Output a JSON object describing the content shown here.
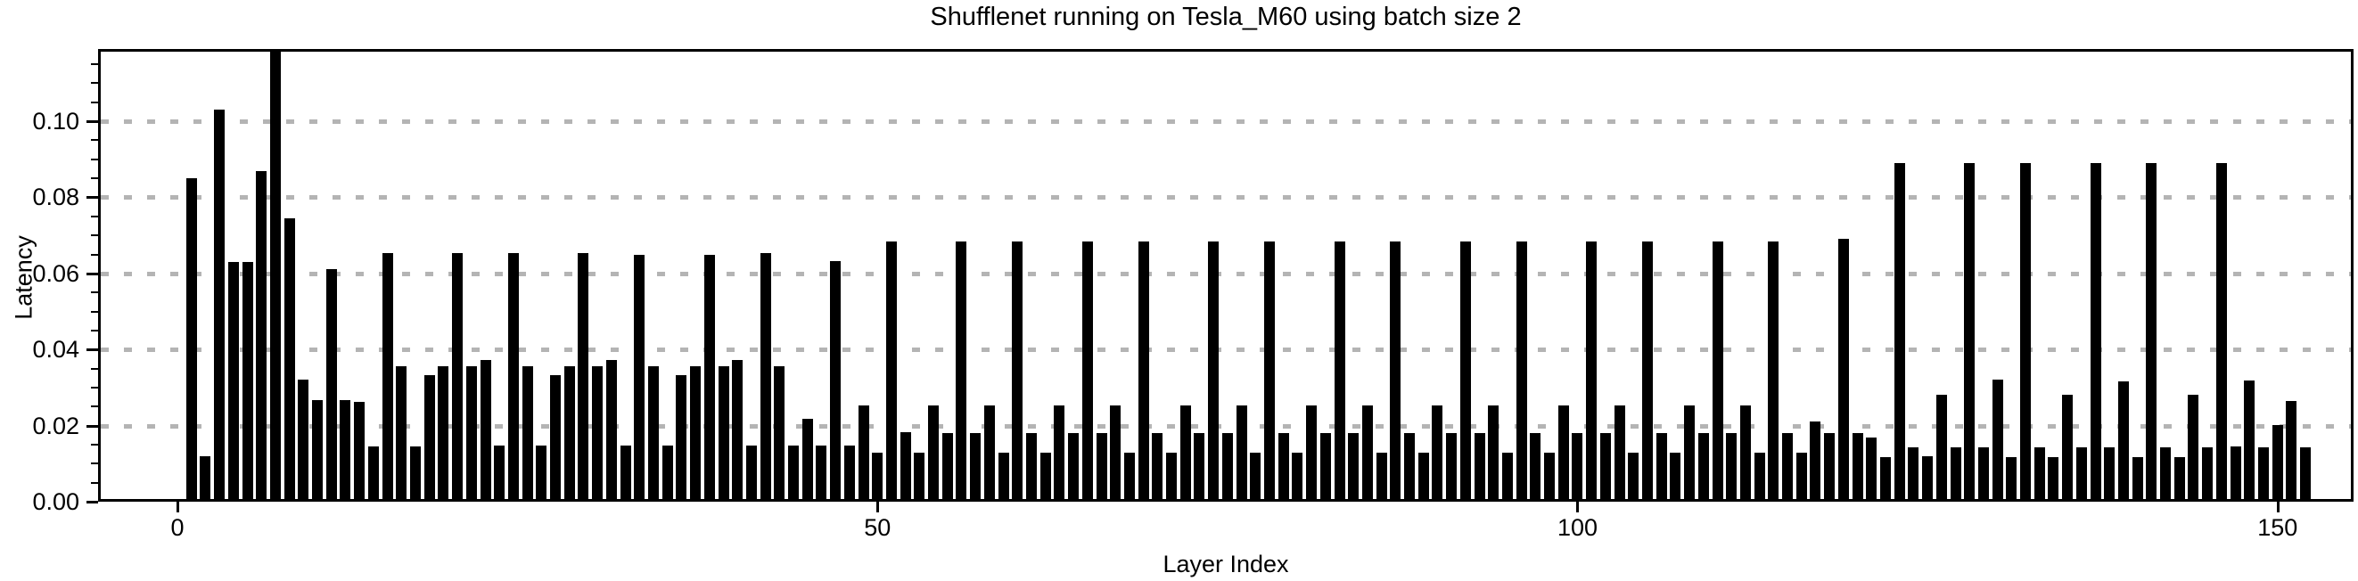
{
  "chart_data": {
    "type": "bar",
    "title": "Shufflenet running on Tesla_M60 using batch size 2",
    "xlabel": "Layer Index",
    "ylabel": "Latency",
    "bar_color": "#000000",
    "grid_color": "#b4b4b4",
    "grid_style": "dashed-y",
    "legend": "none",
    "x_start_index": 1,
    "xlim": [
      -5.67,
      155.43
    ],
    "ylim": [
      0,
      0.119
    ],
    "xticks": [
      0,
      50,
      100,
      150
    ],
    "xtick_labels": [
      "0",
      "50",
      "100",
      "150"
    ],
    "yticks": [
      0.0,
      0.02,
      0.04,
      0.06,
      0.08,
      0.1
    ],
    "ytick_labels": [
      "0.00",
      "0.02",
      "0.04",
      "0.06",
      "0.08",
      "0.10"
    ],
    "y_minor_step": 0.005,
    "values": [
      0.085,
      0.012,
      0.103,
      0.063,
      0.063,
      0.087,
      0.119,
      0.0746,
      0.0322,
      0.0268,
      0.0611,
      0.0268,
      0.0263,
      0.0146,
      0.0653,
      0.0355,
      0.0146,
      0.0332,
      0.0357,
      0.0653,
      0.0357,
      0.0373,
      0.0148,
      0.0653,
      0.0355,
      0.0148,
      0.0332,
      0.0357,
      0.0653,
      0.0356,
      0.0373,
      0.0148,
      0.065,
      0.0356,
      0.0148,
      0.0332,
      0.0356,
      0.065,
      0.0356,
      0.0373,
      0.0148,
      0.0653,
      0.0357,
      0.0148,
      0.0218,
      0.0148,
      0.0633,
      0.0148,
      0.0253,
      0.0128,
      0.0684,
      0.0183,
      0.0128,
      0.0252,
      0.018,
      0.0684,
      0.018,
      0.0252,
      0.0128,
      0.0684,
      0.018,
      0.0128,
      0.0252,
      0.018,
      0.0684,
      0.018,
      0.0252,
      0.0128,
      0.0684,
      0.018,
      0.0128,
      0.0252,
      0.018,
      0.0684,
      0.018,
      0.0252,
      0.0128,
      0.0684,
      0.018,
      0.0128,
      0.0252,
      0.018,
      0.0684,
      0.018,
      0.0252,
      0.0128,
      0.0684,
      0.018,
      0.0128,
      0.0252,
      0.018,
      0.0684,
      0.018,
      0.0252,
      0.0128,
      0.0684,
      0.018,
      0.0128,
      0.0252,
      0.018,
      0.0684,
      0.018,
      0.0252,
      0.0128,
      0.0684,
      0.018,
      0.0128,
      0.0252,
      0.018,
      0.0684,
      0.018,
      0.0252,
      0.0128,
      0.0684,
      0.018,
      0.0128,
      0.021,
      0.018,
      0.069,
      0.018,
      0.0168,
      0.0116,
      0.089,
      0.0144,
      0.012,
      0.028,
      0.0144,
      0.089,
      0.0144,
      0.032,
      0.0118,
      0.089,
      0.0144,
      0.0118,
      0.0281,
      0.0144,
      0.089,
      0.0144,
      0.0317,
      0.0118,
      0.089,
      0.0144,
      0.0118,
      0.028,
      0.0144,
      0.089,
      0.0145,
      0.0318,
      0.0142,
      0.0201,
      0.0264,
      0.0142
    ]
  }
}
